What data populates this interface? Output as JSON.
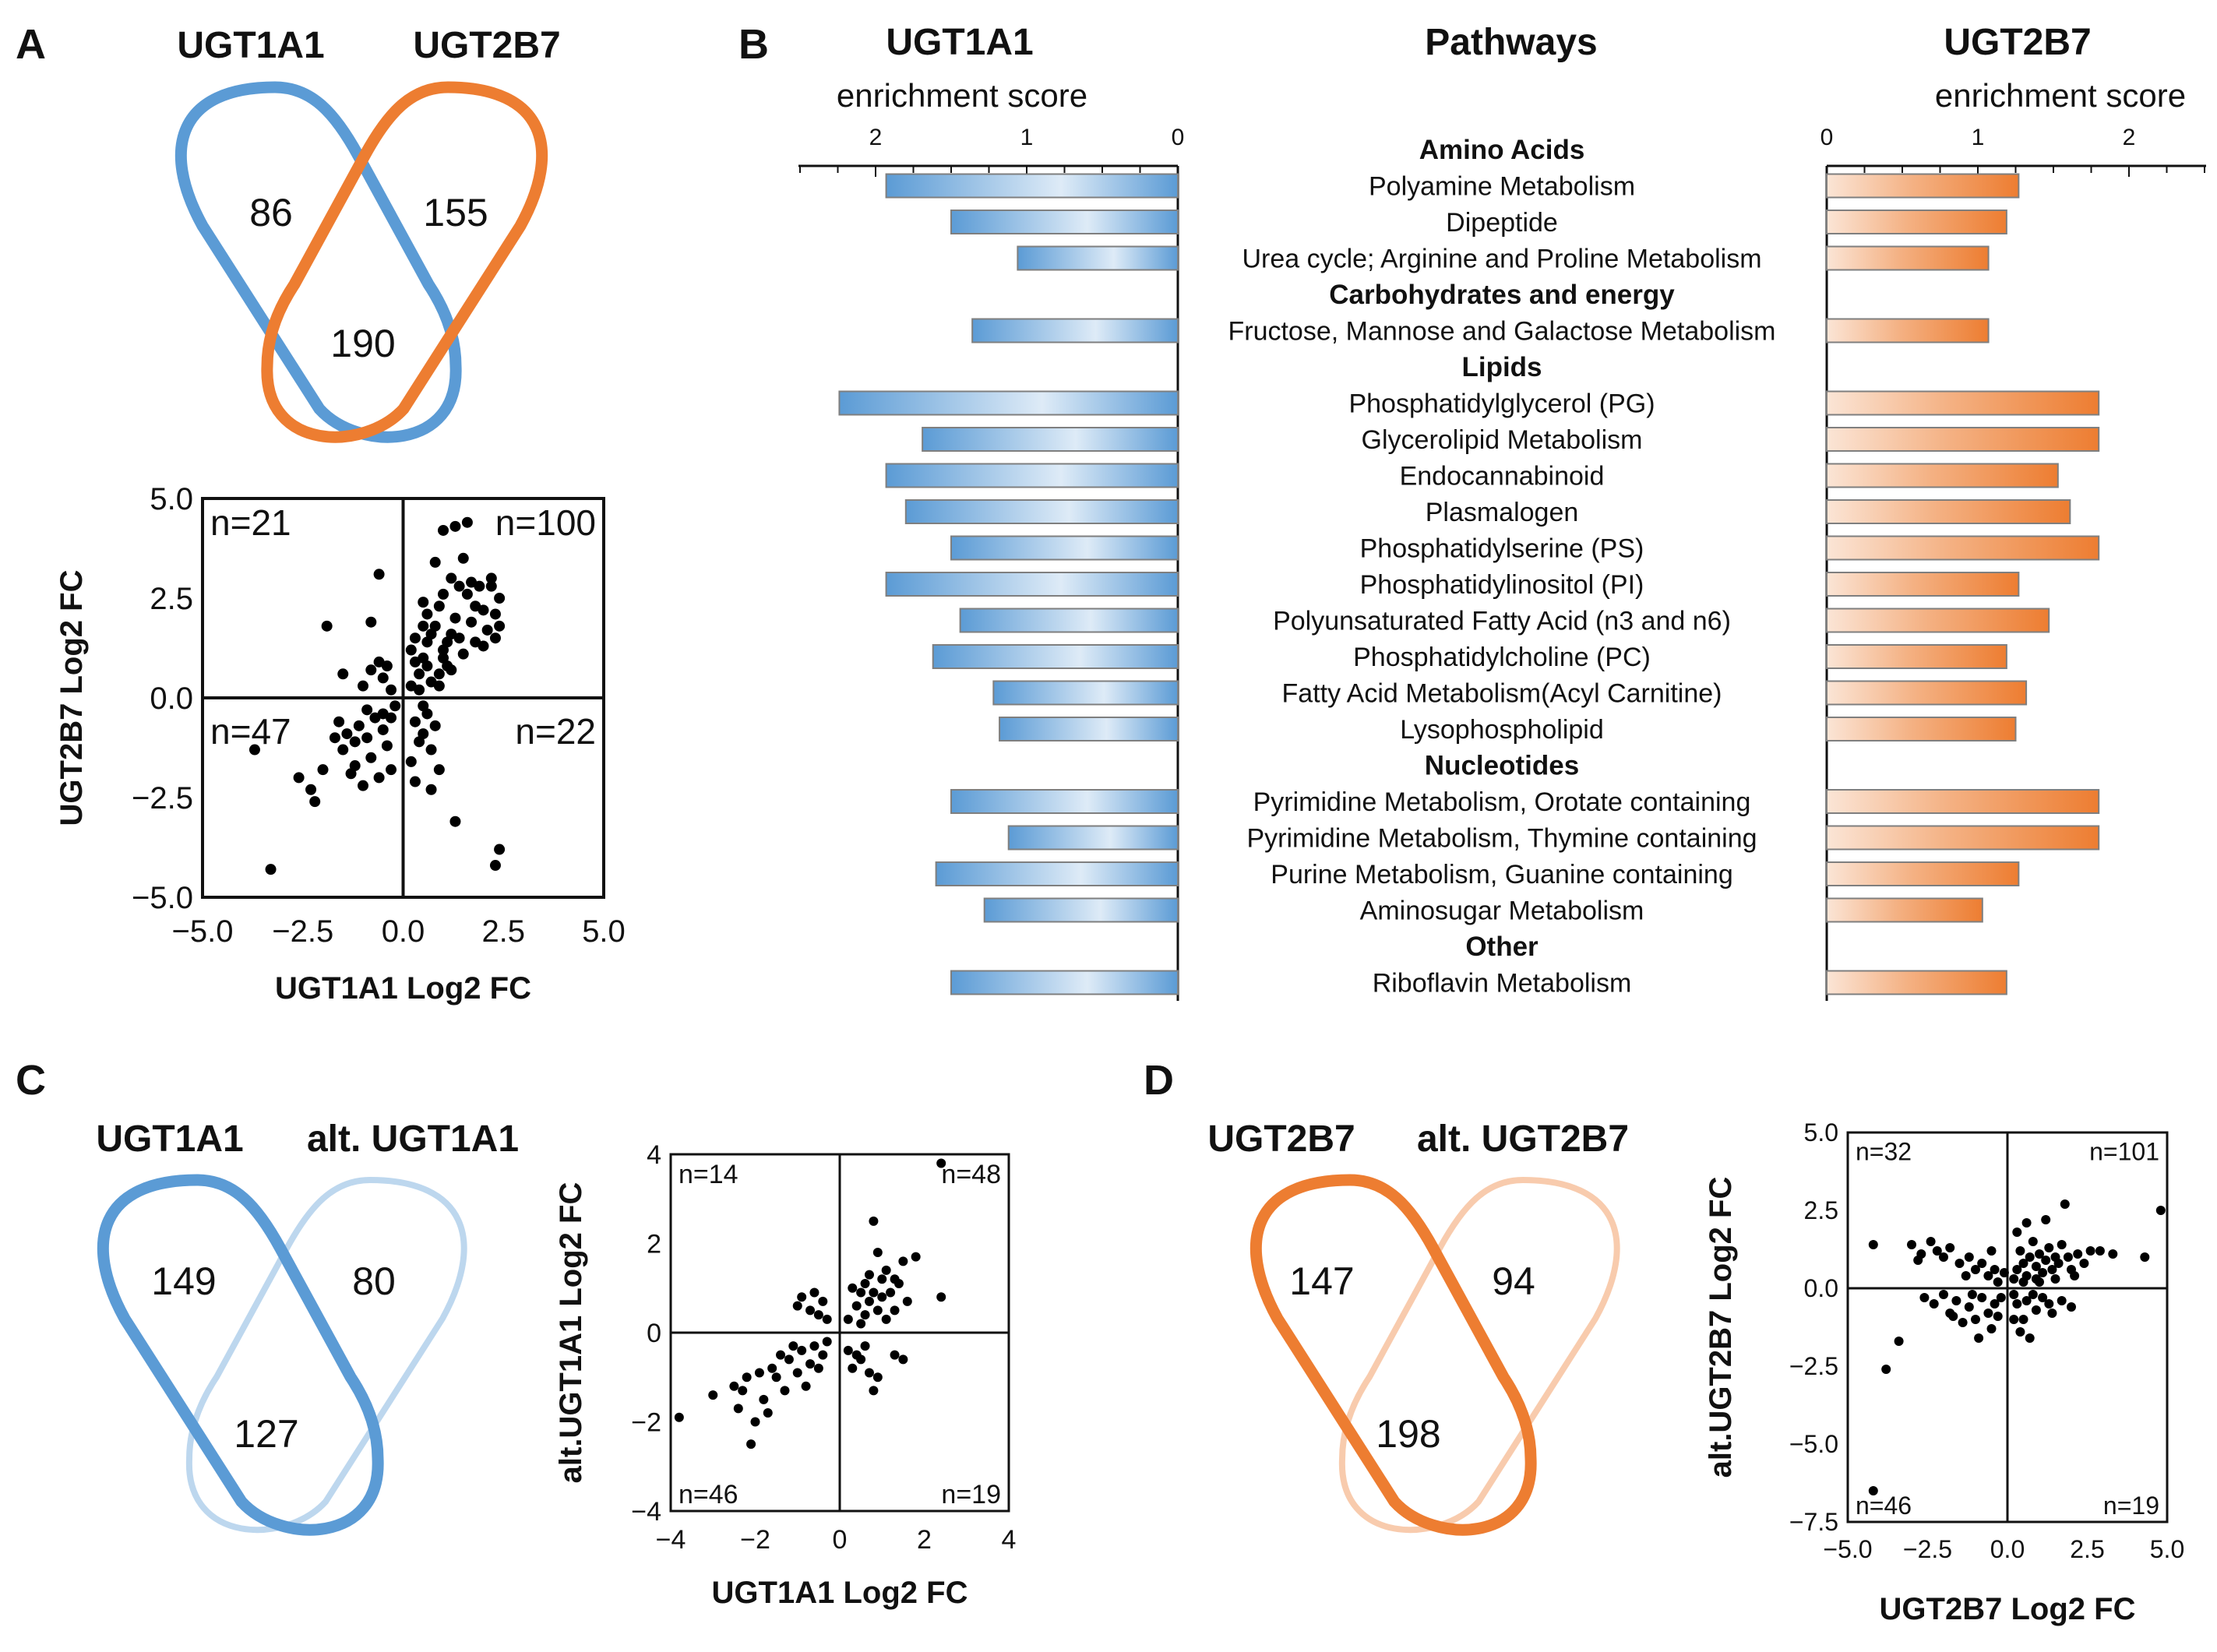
{
  "labels": {
    "panel_a": "A",
    "panel_b": "B",
    "panel_c": "C",
    "panel_d": "D"
  },
  "panel_a": {
    "venn": {
      "left_name": "UGT1A1",
      "right_name": "UGT2B7",
      "left_only": "86",
      "right_only": "155",
      "both": "190",
      "left_color": "#5b9bd5",
      "right_color": "#ed7d31"
    },
    "scatter": {
      "type": "scatter",
      "xlabel": "UGT1A1 Log2 FC",
      "ylabel": "UGT2B7 Log2 FC",
      "xlim": [
        -5,
        5
      ],
      "ylim": [
        -5,
        5
      ],
      "xticks": [
        "−5.0",
        "−2.5",
        "0.0",
        "2.5",
        "5.0"
      ],
      "yticks": [
        "5.0",
        "2.5",
        "0.0",
        "−2.5",
        "−5.0"
      ],
      "quadrants": {
        "tl": "n=21",
        "tr": "n=100",
        "bl": "n=47",
        "br": "n=22"
      },
      "points": [
        [
          -3.3,
          -4.3
        ],
        [
          -3.7,
          -1.3
        ],
        [
          -2.6,
          -2.0
        ],
        [
          -2.2,
          -2.6
        ],
        [
          -2.0,
          -1.8
        ],
        [
          -1.7,
          -1.0
        ],
        [
          -1.5,
          -1.3
        ],
        [
          -1.3,
          -1.9
        ],
        [
          -1.2,
          -1.7
        ],
        [
          -1.0,
          -2.2
        ],
        [
          -0.9,
          -1.0
        ],
        [
          -0.7,
          -0.5
        ],
        [
          -0.5,
          -0.8
        ],
        [
          -0.4,
          -1.2
        ],
        [
          -0.3,
          -0.5
        ],
        [
          -1.1,
          -0.7
        ],
        [
          -1.6,
          -0.6
        ],
        [
          -0.8,
          -1.5
        ],
        [
          -0.6,
          -2.0
        ],
        [
          -0.3,
          -1.8
        ],
        [
          -1.4,
          -0.9
        ],
        [
          -0.5,
          -0.4
        ],
        [
          -1.9,
          1.8
        ],
        [
          -0.8,
          1.9
        ],
        [
          -0.6,
          3.1
        ],
        [
          -0.5,
          0.5
        ],
        [
          -0.8,
          0.7
        ],
        [
          -1.0,
          0.3
        ],
        [
          -0.4,
          0.8
        ],
        [
          -0.3,
          0.2
        ],
        [
          -1.5,
          0.6
        ],
        [
          -0.6,
          0.9
        ],
        [
          -0.9,
          -0.3
        ],
        [
          -2.3,
          -2.3
        ],
        [
          -1.2,
          -1.1
        ],
        [
          -0.2,
          -0.2
        ],
        [
          0.2,
          0.3
        ],
        [
          0.4,
          0.6
        ],
        [
          0.5,
          1.0
        ],
        [
          0.6,
          1.4
        ],
        [
          0.8,
          1.8
        ],
        [
          0.9,
          2.3
        ],
        [
          1.0,
          1.2
        ],
        [
          1.1,
          0.8
        ],
        [
          1.2,
          1.6
        ],
        [
          1.3,
          2.0
        ],
        [
          1.4,
          2.8
        ],
        [
          1.5,
          3.5
        ],
        [
          1.6,
          2.6
        ],
        [
          1.7,
          1.9
        ],
        [
          1.8,
          2.3
        ],
        [
          1.9,
          2.8
        ],
        [
          2.0,
          2.2
        ],
        [
          2.1,
          1.7
        ],
        [
          2.2,
          3.0
        ],
        [
          2.3,
          2.1
        ],
        [
          2.4,
          2.5
        ],
        [
          0.3,
          1.5
        ],
        [
          0.5,
          2.4
        ],
        [
          0.7,
          0.4
        ],
        [
          0.9,
          0.6
        ],
        [
          1.0,
          2.6
        ],
        [
          1.2,
          3.0
        ],
        [
          0.8,
          3.4
        ],
        [
          1.0,
          4.2
        ],
        [
          1.3,
          4.3
        ],
        [
          1.6,
          4.4
        ],
        [
          2.2,
          2.8
        ],
        [
          2.4,
          1.8
        ],
        [
          0.4,
          0.2
        ],
        [
          0.6,
          0.8
        ],
        [
          0.2,
          1.2
        ],
        [
          0.3,
          0.9
        ],
        [
          0.5,
          1.8
        ],
        [
          0.7,
          1.6
        ],
        [
          1.1,
          1.4
        ],
        [
          1.5,
          1.1
        ],
        [
          1.8,
          1.4
        ],
        [
          2.0,
          1.3
        ],
        [
          2.3,
          1.5
        ],
        [
          0.3,
          -0.6
        ],
        [
          0.5,
          -0.9
        ],
        [
          0.7,
          -1.3
        ],
        [
          0.9,
          -1.8
        ],
        [
          0.6,
          -0.4
        ],
        [
          0.4,
          -1.1
        ],
        [
          0.8,
          -0.7
        ],
        [
          1.3,
          -3.1
        ],
        [
          2.3,
          -4.2
        ],
        [
          2.4,
          -3.8
        ],
        [
          0.2,
          -1.6
        ],
        [
          0.3,
          -2.1
        ],
        [
          0.7,
          -2.3
        ],
        [
          0.5,
          -0.2
        ],
        [
          0.9,
          0.3
        ],
        [
          1.2,
          0.7
        ],
        [
          0.6,
          2.1
        ],
        [
          1.4,
          1.5
        ],
        [
          1.0,
          1.0
        ],
        [
          1.7,
          2.9
        ]
      ]
    }
  },
  "panel_b": {
    "left_title": "UGT1A1",
    "center_title": "Pathways",
    "right_title": "UGT2B7",
    "left_axis_title": "enrichment score",
    "right_axis_title": "enrichment score",
    "left_ticks": [
      "2",
      "1",
      "0"
    ],
    "right_ticks": [
      "0",
      "1",
      "2"
    ],
    "chart_data": {
      "type": "bar",
      "xlim": [
        0,
        2.5
      ],
      "series": [
        {
          "name": "UGT1A1",
          "color": "#5b9bd5"
        },
        {
          "name": "UGT2B7",
          "color": "#ed7d31"
        }
      ],
      "rows": [
        {
          "label": "Amino Acids",
          "header": true
        },
        {
          "label": "Polyamine Metabolism",
          "ugt1a1": 1.93,
          "ugt2b7": 1.27
        },
        {
          "label": "Dipeptide",
          "ugt1a1": 1.5,
          "ugt2b7": 1.19
        },
        {
          "label": "Urea cycle; Arginine and Proline Metabolism",
          "ugt1a1": 1.06,
          "ugt2b7": 1.07
        },
        {
          "label": "Carbohydrates and energy",
          "header": true
        },
        {
          "label": "Fructose, Mannose and Galactose Metabolism",
          "ugt1a1": 1.36,
          "ugt2b7": 1.07
        },
        {
          "label": "Lipids",
          "header": true
        },
        {
          "label": "Phosphatidylglycerol (PG)",
          "ugt1a1": 2.24,
          "ugt2b7": 1.8
        },
        {
          "label": "Glycerolipid Metabolism",
          "ugt1a1": 1.69,
          "ugt2b7": 1.8
        },
        {
          "label": "Endocannabinoid",
          "ugt1a1": 1.93,
          "ugt2b7": 1.53
        },
        {
          "label": "Plasmalogen",
          "ugt1a1": 1.8,
          "ugt2b7": 1.61
        },
        {
          "label": "Phosphatidylserine (PS)",
          "ugt1a1": 1.5,
          "ugt2b7": 1.8
        },
        {
          "label": "Phosphatidylinositol (PI)",
          "ugt1a1": 1.93,
          "ugt2b7": 1.27
        },
        {
          "label": "Polyunsaturated Fatty Acid (n3 and n6)",
          "ugt1a1": 1.44,
          "ugt2b7": 1.47
        },
        {
          "label": "Phosphatidylcholine (PC)",
          "ugt1a1": 1.62,
          "ugt2b7": 1.19
        },
        {
          "label": "Fatty Acid Metabolism(Acyl Carnitine)",
          "ugt1a1": 1.22,
          "ugt2b7": 1.32
        },
        {
          "label": "Lysophospholipid",
          "ugt1a1": 1.18,
          "ugt2b7": 1.25
        },
        {
          "label": "Nucleotides",
          "header": true
        },
        {
          "label": "Pyrimidine Metabolism, Orotate containing",
          "ugt1a1": 1.5,
          "ugt2b7": 1.8
        },
        {
          "label": "Pyrimidine Metabolism, Thymine containing",
          "ugt1a1": 1.12,
          "ugt2b7": 1.8
        },
        {
          "label": "Purine Metabolism, Guanine containing",
          "ugt1a1": 1.6,
          "ugt2b7": 1.27
        },
        {
          "label": "Aminosugar Metabolism",
          "ugt1a1": 1.28,
          "ugt2b7": 1.03
        },
        {
          "label": "Other",
          "header": true
        },
        {
          "label": "Riboflavin Metabolism",
          "ugt1a1": 1.5,
          "ugt2b7": 1.19
        }
      ]
    }
  },
  "panel_c": {
    "venn": {
      "left_name": "UGT1A1",
      "right_name": "alt. UGT1A1",
      "left_only": "149",
      "right_only": "80",
      "both": "127",
      "left_color": "#5b9bd5",
      "right_color": "#bdd7ee"
    },
    "scatter": {
      "type": "scatter",
      "xlabel": "UGT1A1 Log2 FC",
      "ylabel": "alt.UGT1A1 Log2 FC",
      "xlim": [
        -4,
        4
      ],
      "ylim": [
        -4,
        4
      ],
      "xticks": [
        "−4",
        "−2",
        "0",
        "2",
        "4"
      ],
      "yticks": [
        "4",
        "2",
        "0",
        "−2",
        "−4"
      ],
      "quadrants": {
        "tl": "n=14",
        "tr": "n=48",
        "bl": "n=46",
        "br": "n=19"
      },
      "points": [
        [
          -3.8,
          -1.9
        ],
        [
          -3.0,
          -1.4
        ],
        [
          -2.5,
          -1.2
        ],
        [
          -2.4,
          -1.7
        ],
        [
          -2.2,
          -1.0
        ],
        [
          -2.1,
          -2.5
        ],
        [
          -1.8,
          -1.5
        ],
        [
          -1.6,
          -0.8
        ],
        [
          -1.5,
          -1.0
        ],
        [
          -1.3,
          -1.3
        ],
        [
          -1.2,
          -0.6
        ],
        [
          -1.0,
          -0.9
        ],
        [
          -0.9,
          -0.4
        ],
        [
          -0.8,
          -1.2
        ],
        [
          -0.7,
          -0.7
        ],
        [
          -0.6,
          -0.3
        ],
        [
          -0.5,
          -0.8
        ],
        [
          -0.4,
          -0.5
        ],
        [
          -0.3,
          -0.2
        ],
        [
          -1.1,
          -0.3
        ],
        [
          -1.4,
          -0.5
        ],
        [
          -2.0,
          -2.0
        ],
        [
          -1.7,
          -1.8
        ],
        [
          -0.9,
          0.8
        ],
        [
          -0.7,
          0.5
        ],
        [
          -0.6,
          0.9
        ],
        [
          -0.5,
          0.4
        ],
        [
          -0.4,
          0.7
        ],
        [
          -0.3,
          0.3
        ],
        [
          -1.0,
          0.6
        ],
        [
          0.2,
          0.3
        ],
        [
          0.4,
          0.6
        ],
        [
          0.5,
          0.9
        ],
        [
          0.6,
          0.4
        ],
        [
          0.7,
          1.3
        ],
        [
          0.8,
          2.5
        ],
        [
          0.9,
          1.8
        ],
        [
          1.0,
          0.8
        ],
        [
          1.1,
          1.4
        ],
        [
          1.2,
          0.9
        ],
        [
          1.3,
          0.5
        ],
        [
          1.4,
          1.1
        ],
        [
          1.5,
          1.6
        ],
        [
          1.6,
          0.7
        ],
        [
          1.8,
          1.7
        ],
        [
          2.4,
          3.8
        ],
        [
          2.4,
          0.8
        ],
        [
          0.3,
          1.0
        ],
        [
          0.5,
          0.2
        ],
        [
          0.7,
          0.7
        ],
        [
          0.9,
          0.5
        ],
        [
          1.1,
          0.3
        ],
        [
          0.2,
          -0.4
        ],
        [
          0.3,
          -0.8
        ],
        [
          0.5,
          -0.6
        ],
        [
          0.7,
          -0.9
        ],
        [
          0.9,
          -1.0
        ],
        [
          0.8,
          -1.3
        ],
        [
          0.6,
          -0.3
        ],
        [
          1.3,
          -0.5
        ],
        [
          1.5,
          -0.6
        ],
        [
          0.4,
          -0.5
        ],
        [
          1.0,
          1.2
        ],
        [
          0.6,
          1.1
        ],
        [
          1.3,
          1.2
        ],
        [
          0.8,
          0.9
        ],
        [
          -2.3,
          -1.3
        ],
        [
          -1.9,
          -0.9
        ]
      ]
    }
  },
  "panel_d": {
    "venn": {
      "left_name": "UGT2B7",
      "right_name": "alt. UGT2B7",
      "left_only": "147",
      "right_only": "94",
      "both": "198",
      "left_color": "#ed7d31",
      "right_color": "#f8cbad"
    },
    "scatter": {
      "type": "scatter",
      "xlabel": "UGT2B7 Log2 FC",
      "ylabel": "alt.UGT2B7 Log2 FC",
      "xlim": [
        -5,
        5
      ],
      "ylim": [
        -7.5,
        5
      ],
      "xticks": [
        "−5.0",
        "−2.5",
        "0.0",
        "2.5",
        "5.0"
      ],
      "yticks": [
        "5.0",
        "2.5",
        "0.0",
        "−2.5",
        "−5.0",
        "−7.5"
      ],
      "quadrants": {
        "tl": "n=32",
        "tr": "n=101",
        "bl": "n=46",
        "br": "n=19"
      },
      "points": [
        [
          -4.2,
          -6.5
        ],
        [
          -3.8,
          -2.6
        ],
        [
          -3.4,
          -1.7
        ],
        [
          -4.2,
          1.4
        ],
        [
          -3.0,
          1.4
        ],
        [
          -2.7,
          1.1
        ],
        [
          -2.4,
          1.5
        ],
        [
          -2.2,
          1.2
        ],
        [
          -2.0,
          1.0
        ],
        [
          -1.8,
          1.3
        ],
        [
          -1.5,
          0.8
        ],
        [
          -1.2,
          1.0
        ],
        [
          -1.0,
          0.6
        ],
        [
          -0.8,
          0.8
        ],
        [
          -0.6,
          0.4
        ],
        [
          -0.4,
          0.6
        ],
        [
          -0.3,
          0.2
        ],
        [
          -2.6,
          -0.3
        ],
        [
          -2.3,
          -0.5
        ],
        [
          -2.0,
          -0.2
        ],
        [
          -1.8,
          -0.8
        ],
        [
          -1.6,
          -0.4
        ],
        [
          -1.4,
          -1.1
        ],
        [
          -1.2,
          -0.6
        ],
        [
          -1.0,
          -1.0
        ],
        [
          -0.8,
          -0.3
        ],
        [
          -0.6,
          -0.8
        ],
        [
          -0.5,
          -1.3
        ],
        [
          -0.4,
          -0.5
        ],
        [
          -0.3,
          -0.9
        ],
        [
          -0.2,
          -0.3
        ],
        [
          -1.7,
          -0.9
        ],
        [
          0.2,
          0.3
        ],
        [
          0.3,
          0.6
        ],
        [
          0.4,
          1.2
        ],
        [
          0.5,
          0.8
        ],
        [
          0.6,
          0.4
        ],
        [
          0.7,
          1.0
        ],
        [
          0.8,
          1.5
        ],
        [
          0.9,
          0.7
        ],
        [
          1.0,
          1.1
        ],
        [
          1.1,
          0.5
        ],
        [
          1.2,
          0.9
        ],
        [
          1.3,
          1.3
        ],
        [
          1.4,
          0.6
        ],
        [
          1.5,
          1.0
        ],
        [
          1.6,
          0.8
        ],
        [
          1.7,
          1.4
        ],
        [
          1.8,
          2.7
        ],
        [
          1.9,
          1.0
        ],
        [
          2.0,
          0.6
        ],
        [
          2.2,
          1.1
        ],
        [
          2.4,
          0.8
        ],
        [
          2.6,
          1.2
        ],
        [
          2.9,
          1.2
        ],
        [
          3.3,
          1.1
        ],
        [
          4.3,
          1.0
        ],
        [
          4.8,
          2.5
        ],
        [
          0.3,
          1.8
        ],
        [
          0.6,
          2.1
        ],
        [
          1.2,
          2.2
        ],
        [
          0.9,
          0.3
        ],
        [
          0.2,
          -0.2
        ],
        [
          0.3,
          -0.5
        ],
        [
          0.5,
          -1.0
        ],
        [
          0.7,
          -1.6
        ],
        [
          0.9,
          -0.7
        ],
        [
          1.1,
          -0.3
        ],
        [
          1.4,
          -0.8
        ],
        [
          0.4,
          -1.4
        ],
        [
          0.6,
          -0.4
        ],
        [
          1.7,
          -0.4
        ],
        [
          2.0,
          -0.6
        ],
        [
          0.2,
          -1.0
        ],
        [
          0.8,
          -0.2
        ],
        [
          1.3,
          -0.5
        ],
        [
          0.5,
          0.2
        ],
        [
          1.0,
          0.2
        ],
        [
          1.5,
          0.3
        ],
        [
          2.1,
          0.4
        ],
        [
          -0.1,
          0.5
        ],
        [
          -0.5,
          1.2
        ],
        [
          -1.3,
          0.4
        ],
        [
          -2.8,
          0.9
        ],
        [
          -0.9,
          -1.6
        ],
        [
          -1.1,
          -0.2
        ]
      ]
    }
  }
}
